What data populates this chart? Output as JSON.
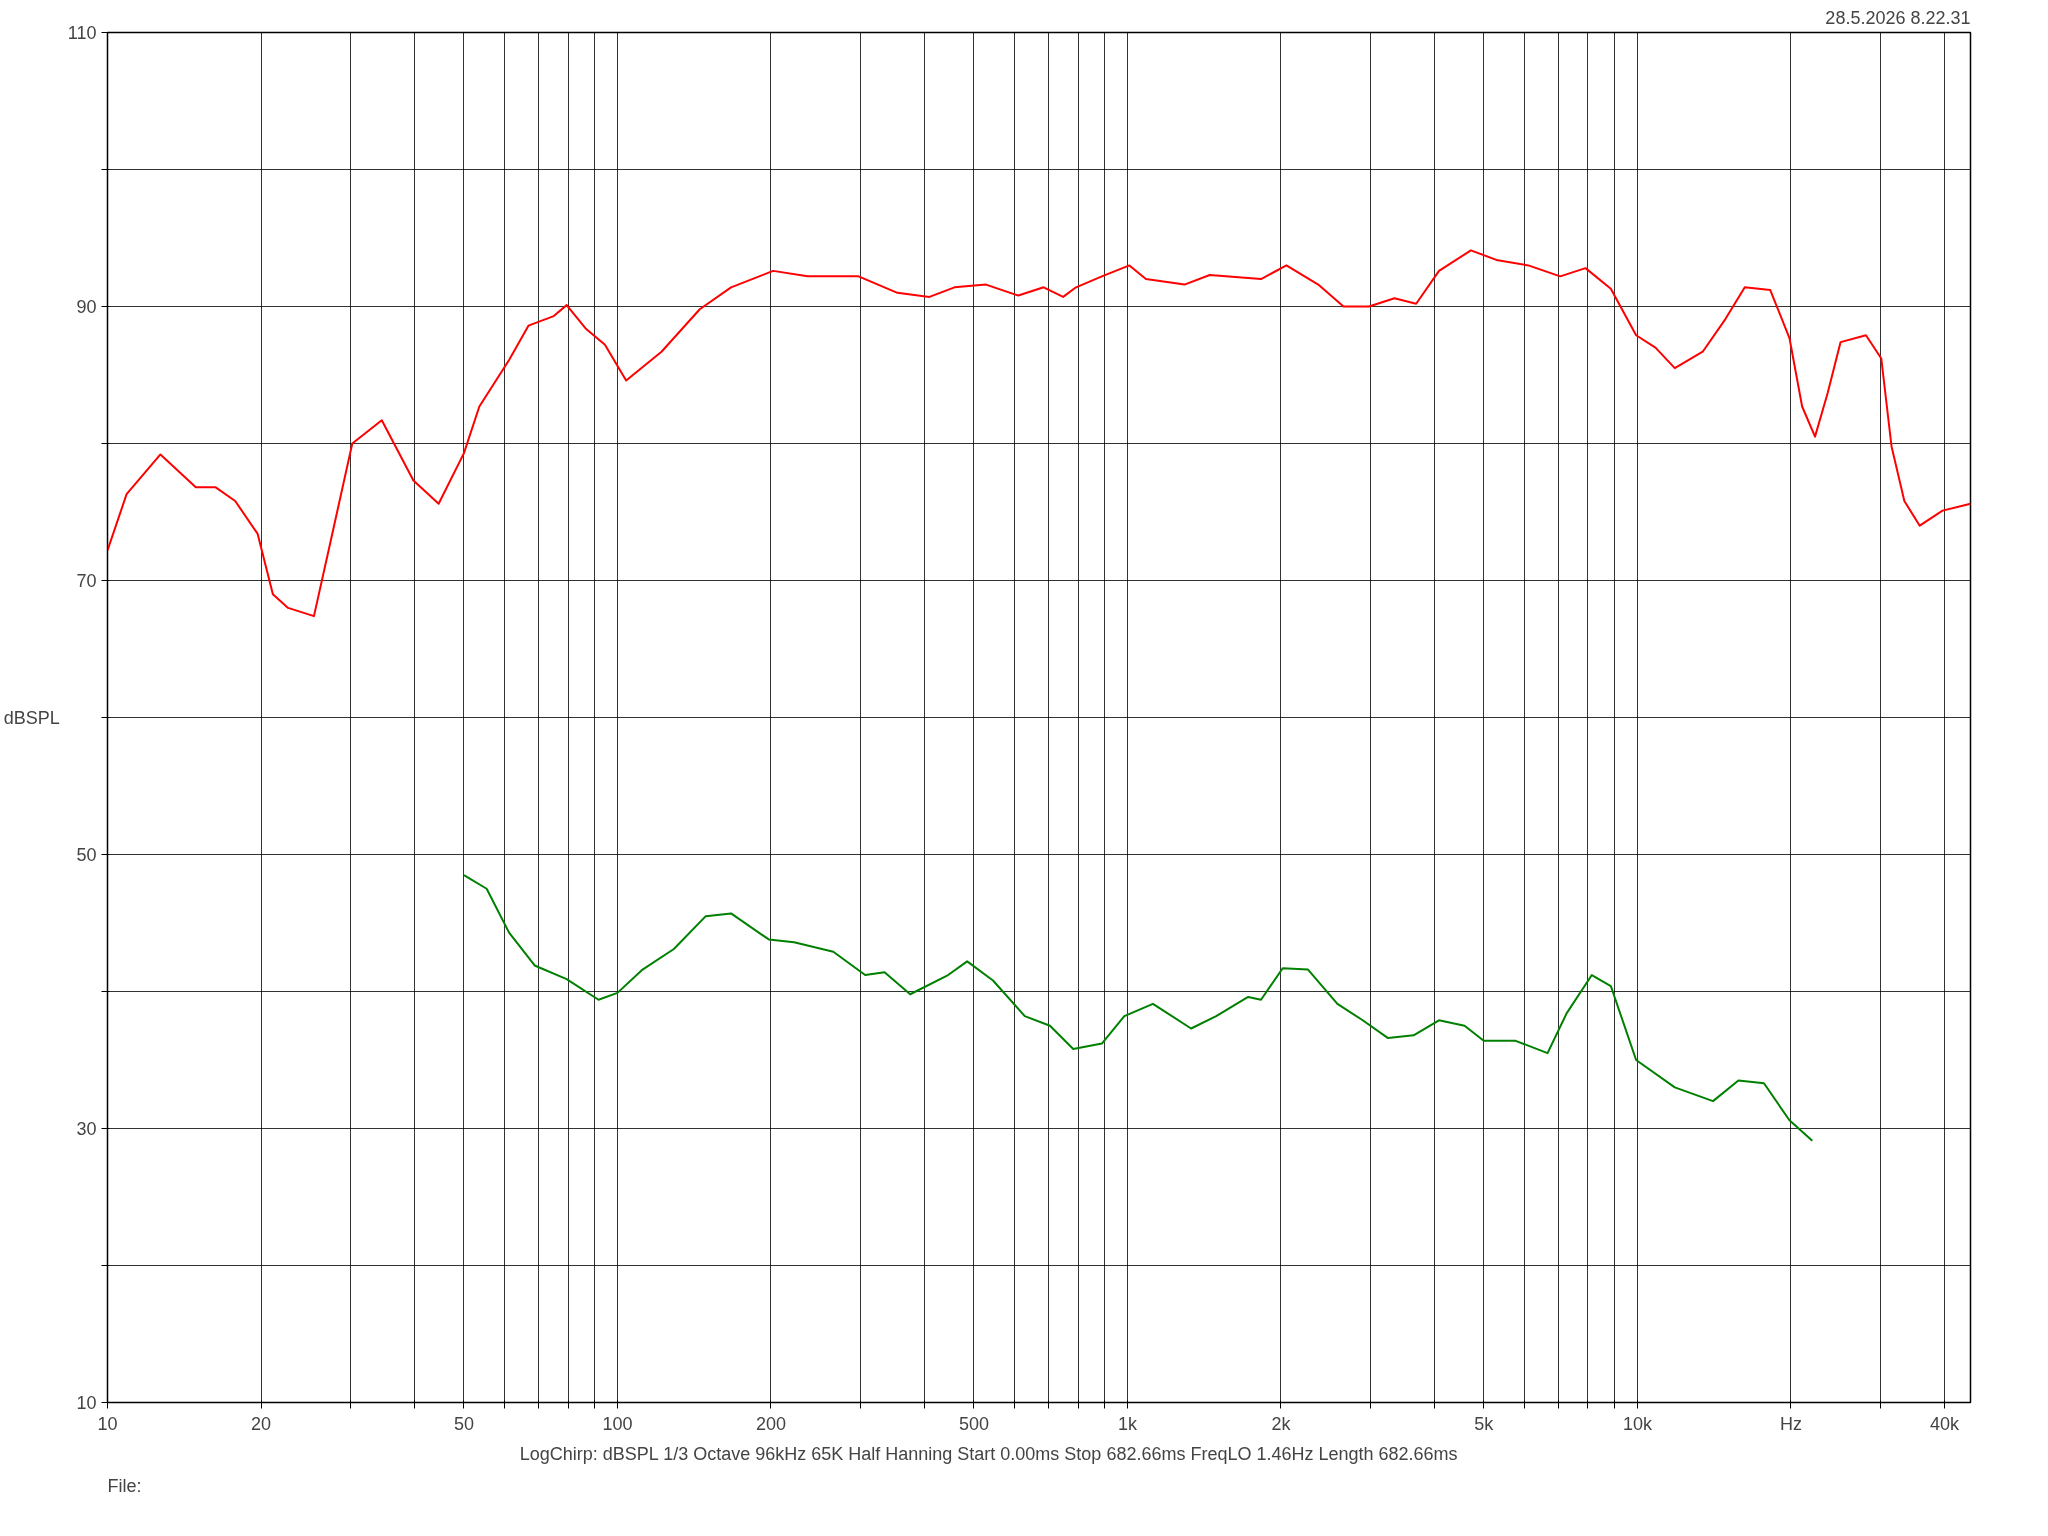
{
  "chart_data": {
    "type": "line",
    "ylabel": "dBSPL",
    "annotations": [
      "28.5.2026 8.22.31",
      "LogChirp:  dBSPL   1/3 Octave   96kHz   65K   Half Hanning   Start 0.00ms    Stop 682.66ms    FreqLO 1.46Hz    Length 682.66ms",
      "File:"
    ],
    "log": "x",
    "grid": true,
    "marker": "none",
    "line_style": "solid",
    "xlim": [
      10,
      45000
    ],
    "ylim": [
      10,
      110
    ],
    "xticks": [
      10,
      20,
      {
        "value": 30,
        "label": null
      },
      {
        "value": 40,
        "label": null
      },
      50,
      {
        "value": 60,
        "label": null
      },
      {
        "value": 70,
        "label": null
      },
      {
        "value": 80,
        "label": null
      },
      {
        "value": 90,
        "label": null
      },
      100,
      200,
      {
        "value": 300,
        "label": null
      },
      {
        "value": 400,
        "label": null
      },
      500,
      {
        "value": 600,
        "label": null
      },
      {
        "value": 700,
        "label": null
      },
      {
        "value": 800,
        "label": null
      },
      {
        "value": 900,
        "label": null
      },
      {
        "value": 1000,
        "label": "1k"
      },
      {
        "value": 2000,
        "label": "2k"
      },
      {
        "value": 3000,
        "label": null
      },
      {
        "value": 4000,
        "label": null
      },
      {
        "value": 5000,
        "label": "5k"
      },
      {
        "value": 6000,
        "label": null
      },
      {
        "value": 7000,
        "label": null
      },
      {
        "value": 8000,
        "label": null
      },
      {
        "value": 9000,
        "label": null
      },
      {
        "value": 10000,
        "label": "10k"
      },
      {
        "value": 20000,
        "label": "Hz"
      },
      {
        "value": 30000,
        "label": null
      },
      {
        "value": 40000,
        "label": "40k"
      }
    ],
    "yticks": [
      10,
      {
        "value": 20,
        "label": null
      },
      30,
      {
        "value": 40,
        "label": null
      },
      50,
      {
        "value": 60,
        "label": null
      },
      70,
      {
        "value": 80,
        "label": null
      },
      90,
      {
        "value": 100,
        "label": null
      },
      110
    ],
    "series": [
      {
        "color": "#ff0000",
        "x": [
          10,
          10.9,
          12.7,
          14.9,
          16.3,
          17.8,
          19.7,
          21.1,
          22.6,
          25.4,
          27.4,
          30.2,
          34.5,
          39.8,
          44.6,
          50,
          53.6,
          61.3,
          66.9,
          75,
          79.5,
          86.6,
          94.5,
          104,
          122,
          145,
          167,
          202,
          236,
          297,
          354,
          409,
          458,
          528,
          611,
          685,
          748,
          793,
          891,
          1009,
          1087,
          1294,
          1450,
          1828,
          2050,
          2367,
          2653,
          2977,
          3339,
          3683,
          4083,
          4716,
          5290,
          6111,
          7058,
          7912,
          8870,
          9943,
          10850,
          11840,
          13430,
          14890,
          16240,
          18220,
          19870,
          21040,
          22300,
          23620,
          25030,
          28070,
          30080,
          31500,
          33380,
          35780,
          39660,
          45000
        ],
        "values": [
          72.2,
          76.3,
          79.2,
          76.8,
          76.8,
          75.8,
          73.4,
          69.0,
          68.0,
          67.4,
          72.9,
          80.0,
          81.7,
          77.3,
          75.6,
          79.3,
          82.7,
          86.1,
          88.6,
          89.3,
          90.1,
          88.4,
          87.2,
          84.6,
          86.7,
          89.8,
          91.4,
          92.6,
          92.2,
          92.2,
          91.0,
          90.7,
          91.4,
          91.6,
          90.8,
          91.4,
          90.7,
          91.4,
          92.2,
          93.0,
          92.0,
          91.6,
          92.3,
          92.0,
          93.0,
          91.6,
          90.0,
          90.0,
          90.6,
          90.2,
          92.6,
          94.1,
          93.4,
          93.0,
          92.2,
          92.8,
          91.3,
          87.9,
          87.0,
          85.5,
          86.7,
          89.1,
          91.4,
          91.2,
          87.7,
          82.7,
          80.5,
          83.7,
          87.4,
          87.9,
          86.2,
          79.8,
          75.8,
          74.0,
          75.1,
          75.6
        ]
      },
      {
        "color": "#008000",
        "x": [
          50,
          55.4,
          61.3,
          68.8,
          79.5,
          91.8,
          100,
          112,
          129,
          149,
          167,
          198,
          222,
          265,
          306,
          334,
          375,
          445,
          485,
          545,
          629,
          705,
          783,
          891,
          986,
          1122,
          1333,
          1493,
          1725,
          1828,
          2016,
          2260,
          2581,
          2893,
          3244,
          3640,
          4083,
          4583,
          4996,
          5772,
          6665,
          7264,
          8140,
          8870,
          9943,
          11840,
          14070,
          15780,
          17710,
          19870,
          22030
        ],
        "values": [
          48.5,
          47.5,
          44.3,
          41.9,
          40.9,
          39.4,
          39.9,
          41.6,
          43.1,
          45.5,
          45.7,
          43.8,
          43.6,
          42.9,
          41.2,
          41.4,
          39.8,
          41.2,
          42.2,
          40.8,
          38.2,
          37.5,
          35.8,
          36.2,
          38.2,
          39.1,
          37.3,
          38.2,
          39.6,
          39.4,
          41.7,
          41.6,
          39.1,
          37.9,
          36.6,
          36.8,
          37.9,
          37.5,
          36.4,
          36.4,
          35.5,
          38.4,
          41.2,
          40.4,
          35.0,
          33.0,
          32.0,
          33.5,
          33.3,
          30.6,
          29.1
        ]
      }
    ]
  }
}
